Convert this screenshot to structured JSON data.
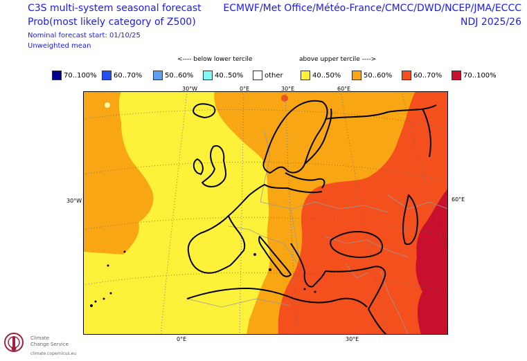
{
  "header": {
    "title_line1": "C3S multi-system seasonal forecast",
    "title_line2": "Prob(most likely category of Z500)",
    "forecast_start": "Nominal forecast start: 01/10/25",
    "weighting": "Unweighted mean",
    "centres": "ECMWF/Met Office/Météo-France/CMCC/DWD/NCEP/JMA/ECCC",
    "period": "NDJ 2025/26"
  },
  "legend_notes": {
    "below": "<---- below lower tercile",
    "above": "above upper tercile ---->"
  },
  "legend": [
    {
      "label": "70..100%",
      "color": "#00008b"
    },
    {
      "label": "60..70%",
      "color": "#2450f0"
    },
    {
      "label": "50..60%",
      "color": "#5ea0f0"
    },
    {
      "label": "40..50%",
      "color": "#80f8f8"
    },
    {
      "label": "other",
      "color": "#ffffff"
    },
    {
      "label": "40..50%",
      "color": "#fef13a"
    },
    {
      "label": "50..60%",
      "color": "#f8a613"
    },
    {
      "label": "60..70%",
      "color": "#f3501e"
    },
    {
      "label": "70..100%",
      "color": "#c8102e"
    }
  ],
  "map_labels": {
    "lon_top_30w": "30°W",
    "lon_top_0e": "0°E",
    "lon_top_30e": "30°E",
    "lon_top_60e": "60°E",
    "lat_left_30w": "30°W",
    "lat_right_60e": "60°E",
    "lon_bottom_0e": "0°E",
    "lon_bottom_30e": "30°E"
  },
  "logo": {
    "line1": "Climate",
    "line2": "Change Service",
    "url": "climate.copernicus.eu"
  }
}
